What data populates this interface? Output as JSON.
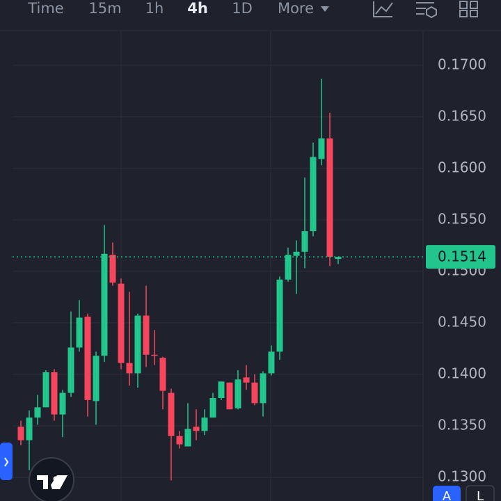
{
  "toolbar": {
    "items": [
      "Time",
      "15m",
      "1h",
      "4h",
      "1D",
      "More"
    ],
    "active": "4h"
  },
  "chart_data": {
    "type": "candlestick",
    "up_color": "#22c58b",
    "down_color": "#f6465d",
    "open": [
      0.1349,
      0.1336,
      0.1358,
      0.1368,
      0.1402,
      0.1361,
      0.1382,
      0.1426,
      0.1456,
      0.1374,
      0.1418,
      0.1516,
      0.1488,
      0.1411,
      0.1401,
      0.1457,
      0.1419,
      0.1416,
      0.1382,
      0.134,
      0.133,
      0.1349,
      0.1345,
      0.1358,
      0.1377,
      0.1392,
      0.1367,
      0.1397,
      0.1392,
      0.1372,
      0.1401,
      0.1422,
      0.1492,
      0.1515,
      0.1519,
      0.1539,
      0.1609,
      0.1629,
      0.1512
    ],
    "high": [
      0.1355,
      0.1365,
      0.138,
      0.1404,
      0.1405,
      0.1385,
      0.1461,
      0.1472,
      0.1459,
      0.1422,
      0.1545,
      0.1528,
      0.1493,
      0.148,
      0.1459,
      0.1486,
      0.1443,
      0.1417,
      0.1386,
      0.1345,
      0.1372,
      0.1366,
      0.1366,
      0.1382,
      0.1393,
      0.1392,
      0.1404,
      0.1409,
      0.14,
      0.1403,
      0.1428,
      0.1495,
      0.1523,
      0.153,
      0.1591,
      0.1625,
      0.1687,
      0.1654,
      0.1514
    ],
    "low": [
      0.1331,
      0.1307,
      0.1351,
      0.1368,
      0.1355,
      0.1339,
      0.1378,
      0.1422,
      0.1359,
      0.1351,
      0.1412,
      0.1486,
      0.1405,
      0.1389,
      0.1387,
      0.1407,
      0.1409,
      0.1366,
      0.1297,
      0.1328,
      0.133,
      0.1336,
      0.1341,
      0.1358,
      0.1375,
      0.1366,
      0.1366,
      0.1385,
      0.137,
      0.1359,
      0.1399,
      0.1414,
      0.149,
      0.1478,
      0.1503,
      0.1534,
      0.1603,
      0.1505,
      0.1507
    ],
    "close": [
      0.1336,
      0.1358,
      0.1368,
      0.1402,
      0.1361,
      0.1382,
      0.1426,
      0.1455,
      0.1375,
      0.1418,
      0.1517,
      0.1489,
      0.1411,
      0.1401,
      0.1457,
      0.1419,
      0.1418,
      0.1384,
      0.134,
      0.1332,
      0.1347,
      0.1345,
      0.1358,
      0.1377,
      0.1393,
      0.1366,
      0.1395,
      0.1392,
      0.1372,
      0.1401,
      0.1422,
      0.1492,
      0.1516,
      0.1519,
      0.1539,
      0.1611,
      0.1629,
      0.1514,
      0.1514
    ],
    "ylim": [
      0.1277,
      0.1733
    ],
    "yticks": [
      {
        "value": 0.13,
        "label": "0.1300"
      },
      {
        "value": 0.135,
        "label": "0.1350"
      },
      {
        "value": 0.14,
        "label": "0.1400"
      },
      {
        "value": 0.145,
        "label": "0.1450"
      },
      {
        "value": 0.15,
        "label": "0.1500"
      },
      {
        "value": 0.155,
        "label": "0.1550"
      },
      {
        "value": 0.16,
        "label": "0.1600"
      },
      {
        "value": 0.165,
        "label": "0.1650"
      },
      {
        "value": 0.17,
        "label": "0.1700"
      }
    ],
    "grid": true,
    "last_price": 0.1514
  },
  "buttons": [
    "A",
    "L"
  ]
}
